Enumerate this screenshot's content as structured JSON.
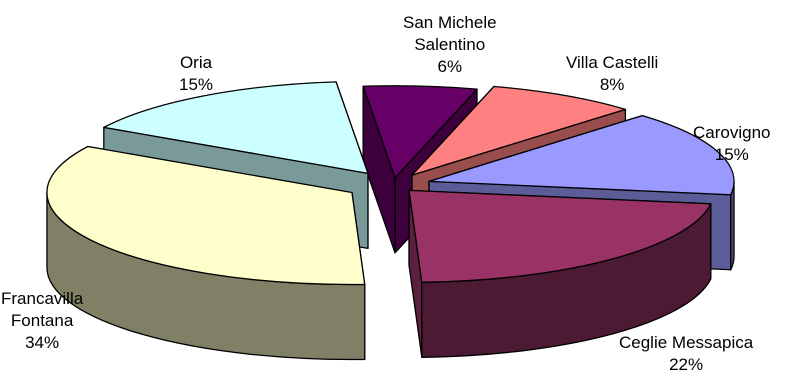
{
  "chart_data": {
    "type": "pie",
    "subtype": "exploded-3d",
    "slices": [
      {
        "label_lines": [
          "San Michele",
          "Salentino"
        ],
        "pct_text": "6%",
        "value": 6,
        "color": "#660066"
      },
      {
        "label_lines": [
          "Villa Castelli"
        ],
        "pct_text": "8%",
        "value": 8,
        "color": "#FF8080"
      },
      {
        "label_lines": [
          "Carovigno"
        ],
        "pct_text": "15%",
        "value": 15,
        "color": "#9999FF"
      },
      {
        "label_lines": [
          "Ceglie Messapica"
        ],
        "pct_text": "22%",
        "value": 22,
        "color": "#993366"
      },
      {
        "label_lines": [
          "Francavilla",
          "Fontana"
        ],
        "pct_text": "34%",
        "value": 34,
        "color": "#FFFFCC"
      },
      {
        "label_lines": [
          "Oria"
        ],
        "pct_text": "15%",
        "value": 15,
        "color": "#CCFFFF"
      }
    ],
    "legend": "none"
  }
}
